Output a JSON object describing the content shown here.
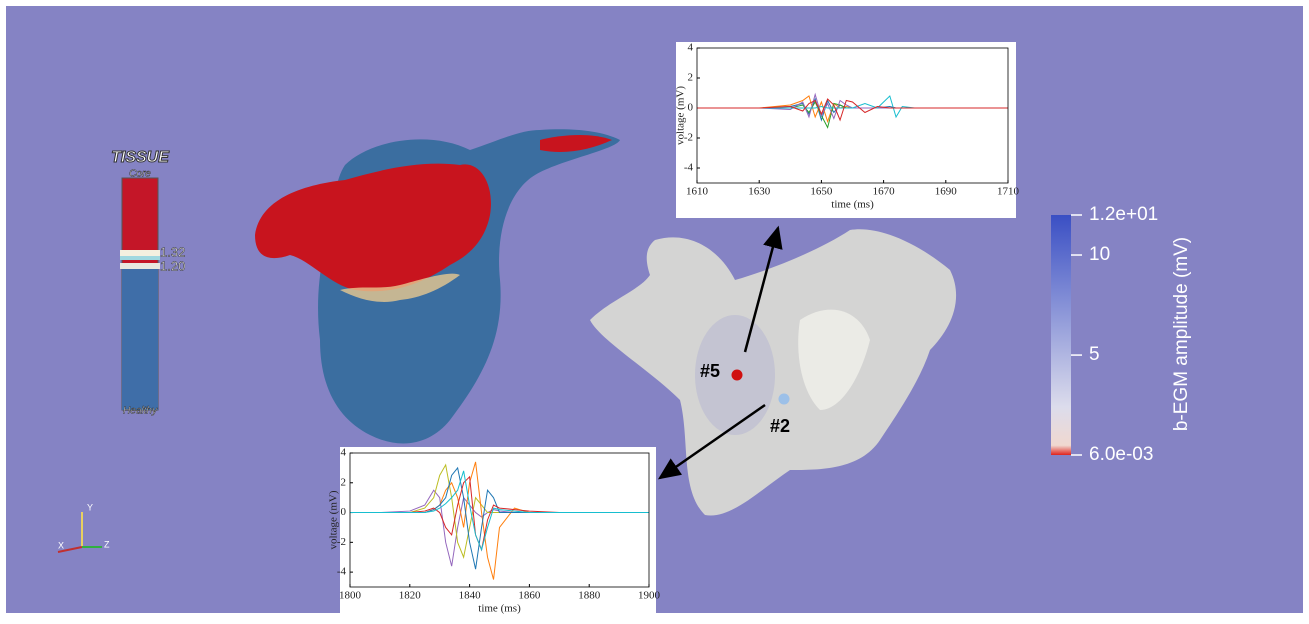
{
  "chart_data": [
    {
      "type": "line",
      "xlabel": "time (ms)",
      "ylabel": "voltage (mV)",
      "xlim": [
        1610,
        1710
      ],
      "xticks": [
        1610,
        1630,
        1650,
        1670,
        1690,
        1710
      ],
      "ylim": [
        -5,
        4
      ],
      "yticks": [
        -4,
        -2,
        0,
        2,
        4
      ],
      "x": [
        1610,
        1620,
        1630,
        1640,
        1644,
        1646,
        1648,
        1650,
        1652,
        1654,
        1656,
        1658,
        1660,
        1664,
        1668,
        1672,
        1674,
        1676,
        1680,
        1690,
        1700,
        1710
      ],
      "series": [
        {
          "color": "#1f77b4",
          "values": [
            0,
            0,
            0,
            0.1,
            0.3,
            -0.4,
            0.6,
            -0.8,
            0.5,
            -0.3,
            0.2,
            0,
            0,
            0,
            0,
            0.1,
            0,
            0,
            0,
            0,
            0,
            0
          ]
        },
        {
          "color": "#ff7f0e",
          "values": [
            0,
            0,
            0,
            0.2,
            0.5,
            0.8,
            -0.6,
            0.4,
            -0.9,
            0.3,
            0,
            0.1,
            0,
            0,
            0,
            0,
            0,
            0,
            0,
            0,
            0,
            0
          ]
        },
        {
          "color": "#2ca02c",
          "values": [
            0,
            0,
            0,
            0,
            0.2,
            -0.3,
            0.4,
            -0.5,
            -1.3,
            0.3,
            0.2,
            0,
            0,
            0,
            0,
            0,
            0,
            0,
            0,
            0,
            0,
            0
          ]
        },
        {
          "color": "#9467bd",
          "values": [
            0,
            0,
            0,
            -0.1,
            0.4,
            -0.6,
            0.9,
            -0.5,
            0.3,
            -0.7,
            0.5,
            0.2,
            0,
            0,
            0,
            0,
            0,
            0,
            0,
            0,
            0,
            0
          ]
        },
        {
          "color": "#17becf",
          "values": [
            0,
            0,
            0,
            0,
            0,
            0,
            0,
            0.1,
            0,
            0,
            0,
            0,
            0,
            0.3,
            0,
            0.8,
            -0.6,
            0.1,
            0,
            0,
            0,
            0
          ]
        },
        {
          "color": "#d62728",
          "values": [
            0,
            0,
            0,
            0.1,
            -0.2,
            0.3,
            0.5,
            -0.4,
            0.6,
            0.2,
            -0.8,
            0.5,
            0.4,
            -0.3,
            0.1,
            0,
            0,
            0,
            0,
            0,
            0,
            0
          ]
        }
      ]
    },
    {
      "type": "line",
      "xlabel": "time (ms)",
      "ylabel": "voltage (mV)",
      "xlim": [
        1800,
        1900
      ],
      "xticks": [
        1800,
        1820,
        1840,
        1860,
        1880,
        1900
      ],
      "ylim": [
        -5,
        4
      ],
      "yticks": [
        -4,
        -2,
        0,
        2,
        4
      ],
      "x": [
        1800,
        1810,
        1820,
        1825,
        1828,
        1830,
        1832,
        1834,
        1836,
        1838,
        1840,
        1842,
        1844,
        1846,
        1848,
        1850,
        1855,
        1860,
        1870,
        1880,
        1890,
        1900
      ],
      "series": [
        {
          "color": "#9467bd",
          "values": [
            0,
            0,
            0.1,
            0.5,
            1.5,
            1.0,
            -2,
            -3.6,
            -1,
            1,
            0.5,
            0,
            -0.3,
            0,
            0.2,
            0.1,
            0,
            0,
            0,
            0,
            0,
            0
          ]
        },
        {
          "color": "#bcbd22",
          "values": [
            0,
            0,
            0,
            0.3,
            1,
            2.5,
            3.2,
            1,
            -2,
            -3,
            -1,
            1,
            0.5,
            0,
            0,
            0,
            0,
            0,
            0,
            0,
            0,
            0
          ]
        },
        {
          "color": "#ff7f0e",
          "values": [
            0,
            0,
            0,
            0,
            0.2,
            0.5,
            1.5,
            2,
            1,
            -1,
            2,
            3.4,
            0,
            -3,
            -4.5,
            -1,
            0.3,
            0,
            0,
            0,
            0,
            0
          ]
        },
        {
          "color": "#1f77b4",
          "values": [
            0,
            0,
            0,
            0,
            0.2,
            0.5,
            1,
            2.5,
            3,
            1,
            -2,
            -3.8,
            -1,
            1.5,
            1,
            0,
            0,
            0,
            0,
            0,
            0,
            0
          ]
        },
        {
          "color": "#d62728",
          "values": [
            0,
            0,
            0,
            0.1,
            0.3,
            0,
            -1,
            -1.5,
            0.5,
            2,
            2.4,
            -1.5,
            -2.5,
            -0.5,
            0.5,
            0.3,
            0.2,
            0.1,
            0,
            0,
            0,
            0
          ]
        },
        {
          "color": "#17becf",
          "values": [
            0,
            0,
            0,
            0,
            0.1,
            0.3,
            0.6,
            1,
            1.5,
            2.8,
            0.5,
            -1.5,
            -2.5,
            -1,
            0.3,
            0.2,
            0.1,
            0,
            0,
            0,
            0,
            0
          ]
        }
      ]
    }
  ],
  "tissue_legend": {
    "title": "TISSUE",
    "top": "Core",
    "bottom": "Healthy",
    "labels": [
      "1.32",
      "1.20"
    ]
  },
  "colorbar": {
    "title": "b-EGM amplitude (mV)",
    "lim": [
      0.006,
      12
    ],
    "ticks": [
      {
        "value": 12,
        "label": "1.2e+01"
      },
      10,
      5,
      {
        "value": 0.006,
        "label": "6.0e-03"
      }
    ]
  },
  "markers": [
    {
      "label": "#5"
    },
    {
      "label": "#2"
    }
  ],
  "axes_triad": {
    "x": "X",
    "y": "Y",
    "z": "Z"
  }
}
